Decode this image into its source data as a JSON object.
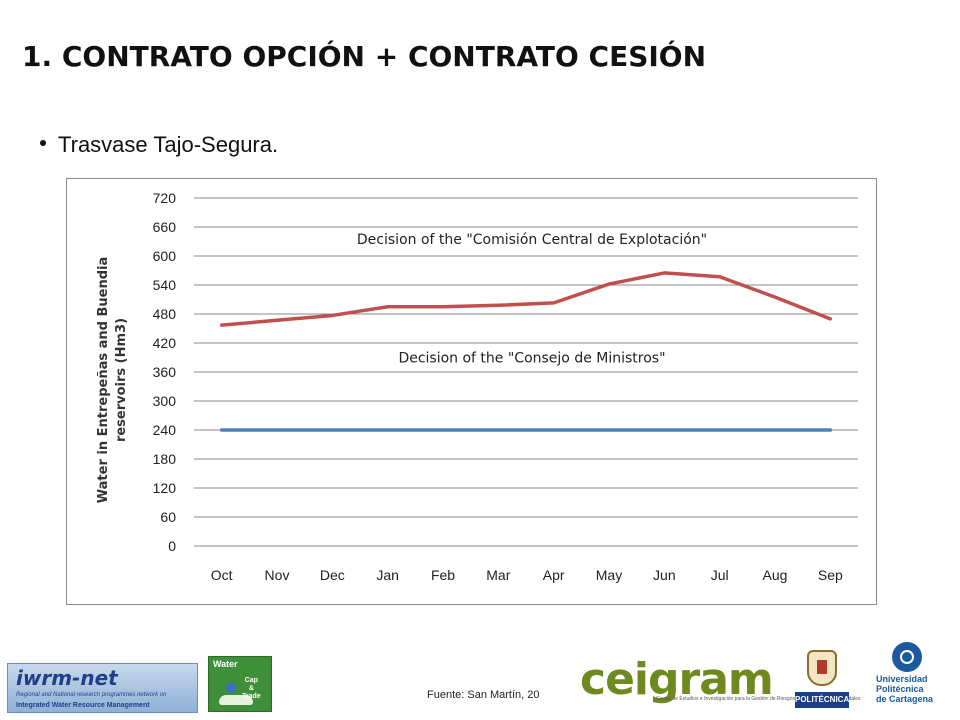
{
  "slide": {
    "title": "1. CONTRATO OPCIÓN + CONTRATO CESIÓN",
    "bullet": "Trasvase Tajo-Segura.",
    "source": "Fuente: San Martín, 20"
  },
  "chart_data": {
    "type": "line",
    "title": "",
    "xlabel": "",
    "ylabel": "Water in Entrepeñas and Buendia reservoirs (Hm3)",
    "ylabel_line1": "Water in Entrepeñas and Buendia",
    "ylabel_line2": "reservoirs (Hm3)",
    "categories": [
      "Oct",
      "Nov",
      "Dec",
      "Jan",
      "Feb",
      "Mar",
      "Apr",
      "May",
      "Jun",
      "Jul",
      "Aug",
      "Sep"
    ],
    "ylim": [
      0,
      720
    ],
    "yticks": [
      "0",
      "60",
      "120",
      "180",
      "240",
      "300",
      "360",
      "420",
      "480",
      "540",
      "600",
      "660",
      "720"
    ],
    "grid": true,
    "series": [
      {
        "values": [
          457,
          467,
          477,
          495,
          495,
          498,
          503,
          542,
          565,
          557,
          515,
          470
        ],
        "color": "#c0504d"
      },
      {
        "values": [
          240,
          240,
          240,
          240,
          240,
          240,
          240,
          240,
          240,
          240,
          240,
          240
        ],
        "color": "#4f81bd"
      }
    ],
    "annotations": [
      {
        "text": "Decision of the \"Comisión Central de Explotación\"",
        "value": 635
      },
      {
        "text": "Decision of the \"Consejo de Ministros\"",
        "value": 390
      }
    ]
  },
  "logos": {
    "iwrm_brand": "iwrm-net",
    "iwrm_line1": "Regional and National research programmes network on",
    "iwrm_line2": "Integrated Water Resource Management",
    "cap_water": "Water",
    "cap_trade": "Cap\n&\nTrade",
    "ceigram": "ceigram",
    "ceigram_tag": "Centro de Estudios e Investigación para la Gestión de Riesgos Agrarios y Medioambientales",
    "politecnica": "POLITÉCNICA",
    "upct": "Universidad\nPolitécnica\nde Cartagena"
  }
}
